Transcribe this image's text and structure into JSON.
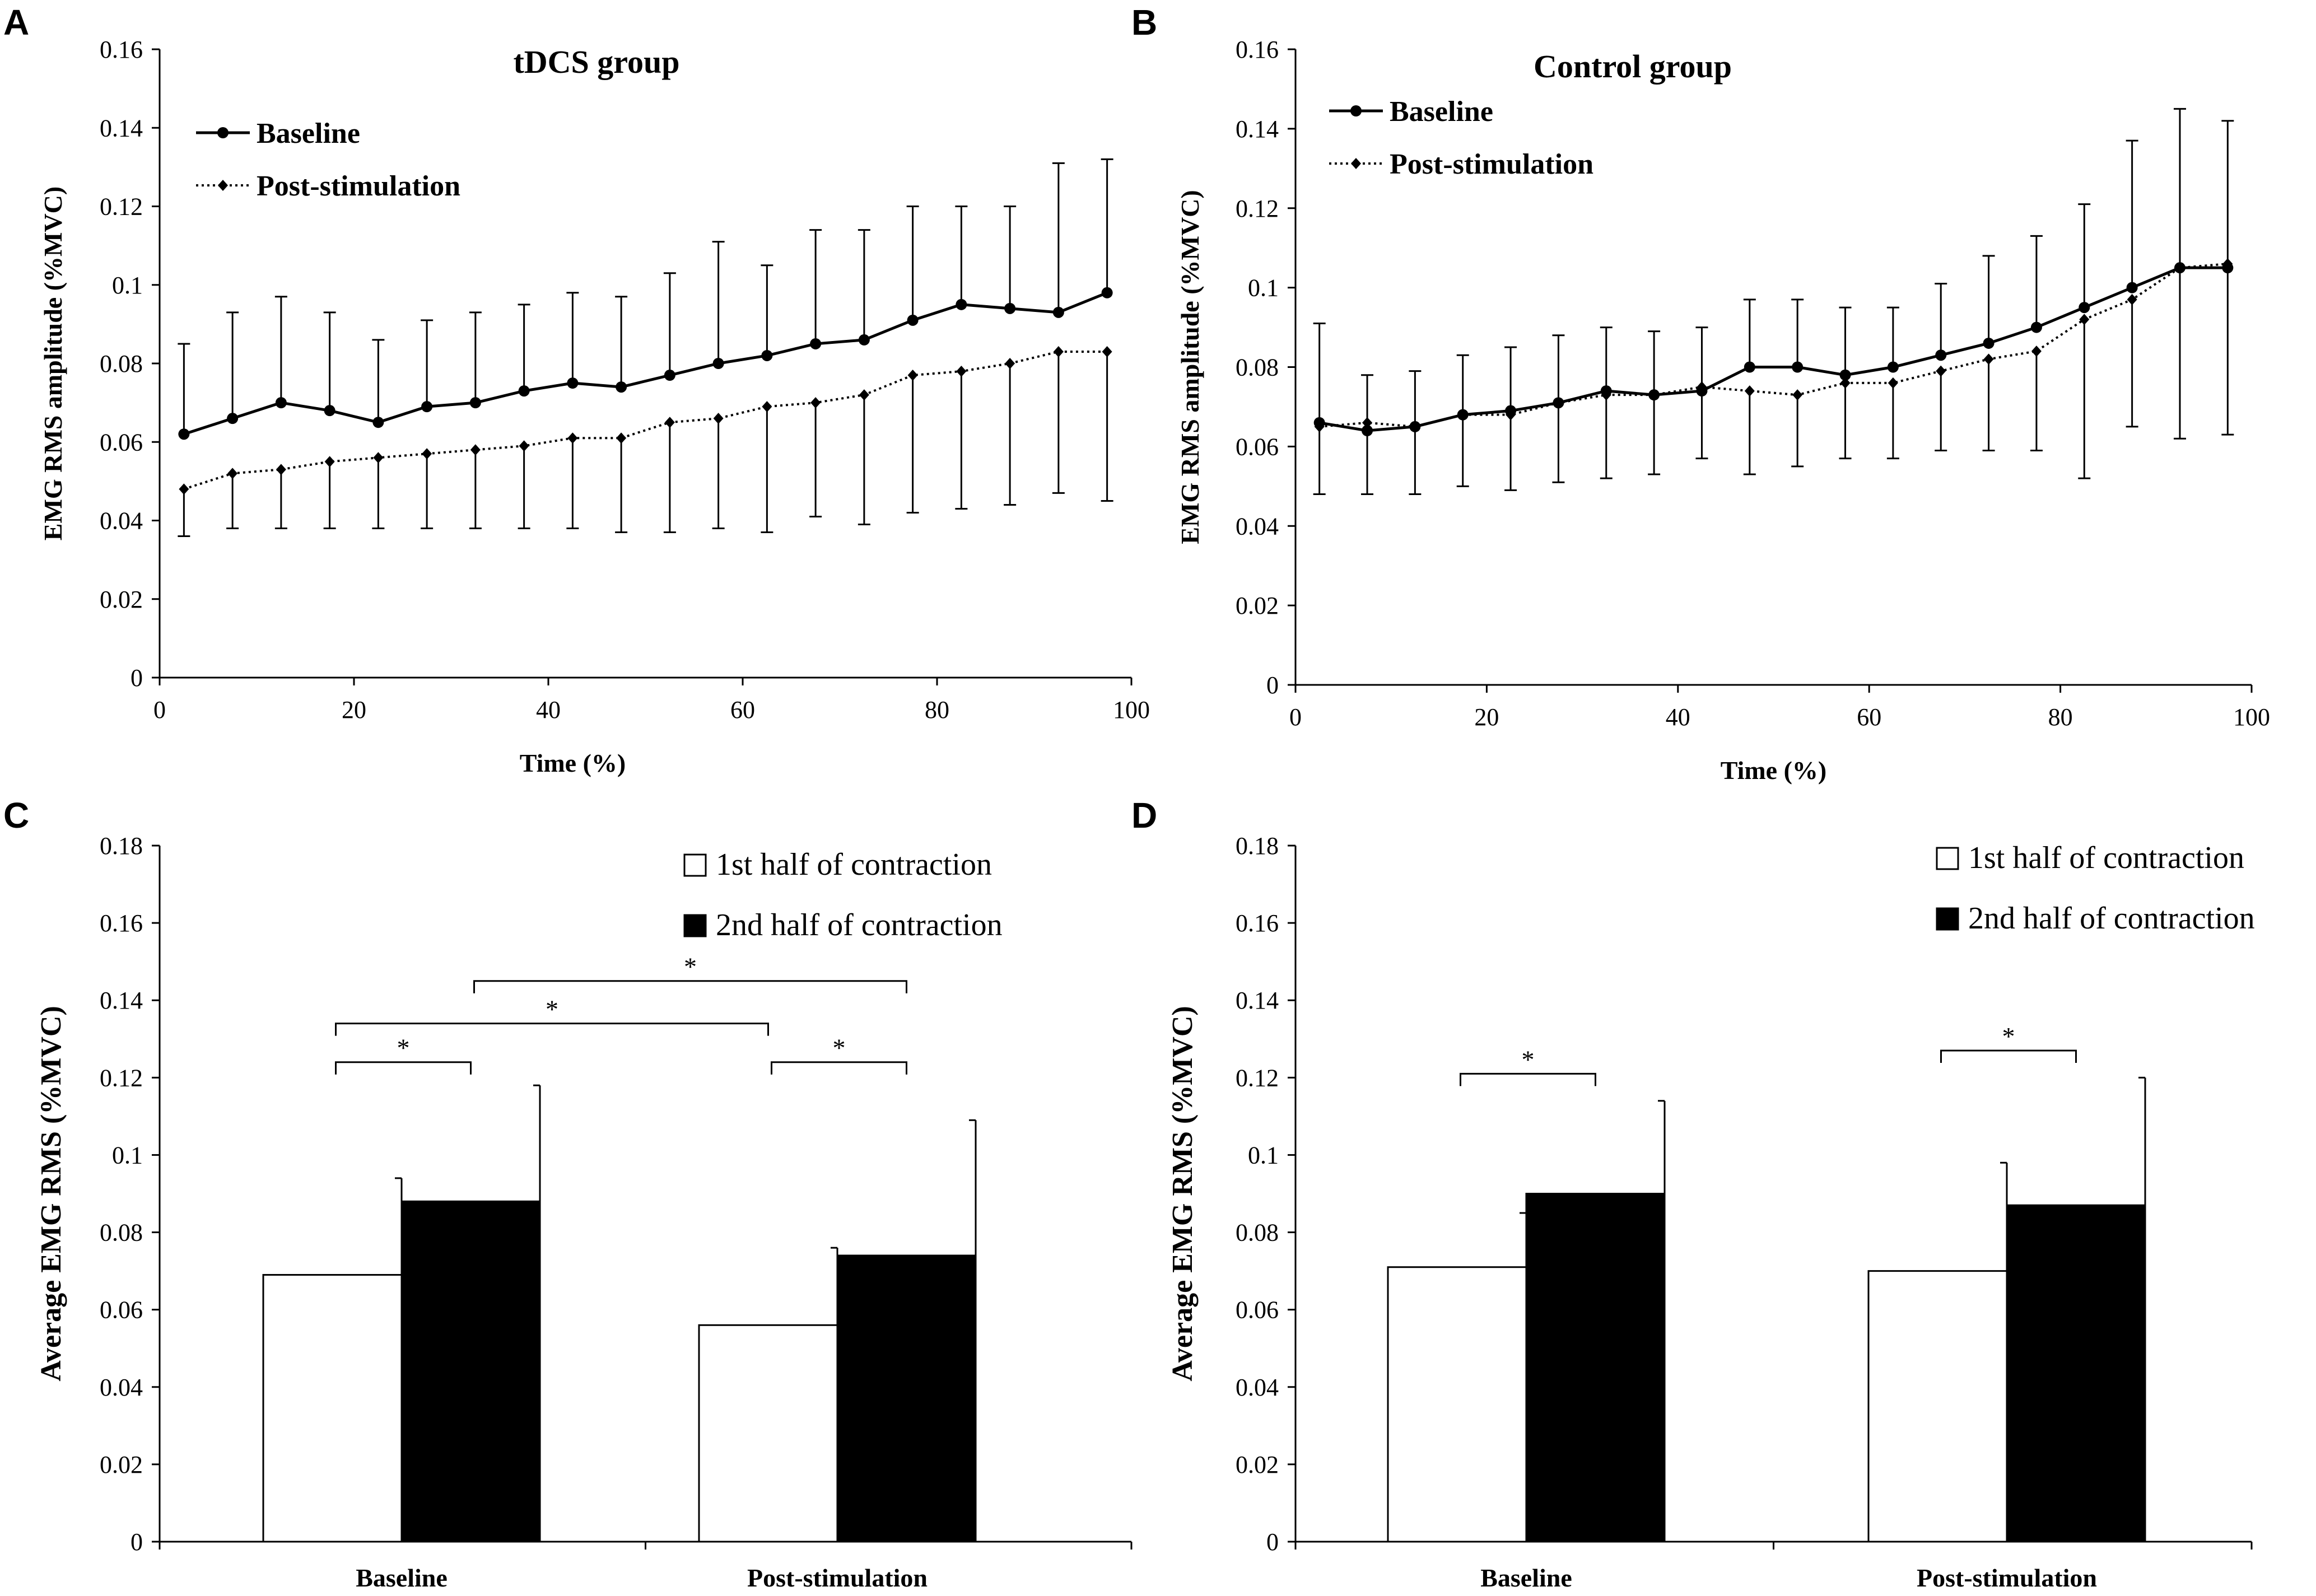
{
  "chart_data": [
    {
      "panel": "A",
      "type": "line",
      "title": "tDCS group",
      "xlabel": "Time (%)",
      "ylabel": "EMG RMS amplitude (%MVC)",
      "xlim": [
        0,
        100
      ],
      "ylim": [
        0,
        0.16
      ],
      "xticks": [
        "0",
        "20",
        "40",
        "60",
        "80",
        "100"
      ],
      "yticks": [
        "0",
        "0.02",
        "0.04",
        "0.06",
        "0.08",
        "0.1",
        "0.12",
        "0.14",
        "0.16"
      ],
      "x": [
        2.5,
        7.5,
        12.5,
        17.5,
        22.5,
        27.5,
        32.5,
        37.5,
        42.5,
        47.5,
        52.5,
        57.5,
        62.5,
        67.5,
        72.5,
        77.5,
        82.5,
        87.5,
        92.5,
        97.5
      ],
      "series": [
        {
          "name": "Baseline",
          "style": "solid",
          "values": [
            0.062,
            0.066,
            0.07,
            0.068,
            0.065,
            0.069,
            0.07,
            0.073,
            0.075,
            0.074,
            0.077,
            0.08,
            0.082,
            0.085,
            0.086,
            0.091,
            0.095,
            0.094,
            0.093,
            0.098
          ],
          "err_upper": [
            0.085,
            0.093,
            0.097,
            0.093,
            0.086,
            0.091,
            0.093,
            0.095,
            0.098,
            0.097,
            0.103,
            0.111,
            0.105,
            0.114,
            0.114,
            0.12,
            0.12,
            0.12,
            0.131,
            0.132
          ]
        },
        {
          "name": "Post-stimulation",
          "style": "dotted",
          "values": [
            0.048,
            0.052,
            0.053,
            0.055,
            0.056,
            0.057,
            0.058,
            0.059,
            0.061,
            0.061,
            0.065,
            0.066,
            0.069,
            0.07,
            0.072,
            0.077,
            0.078,
            0.08,
            0.083,
            0.083
          ],
          "err_lower": [
            0.036,
            0.038,
            0.038,
            0.038,
            0.038,
            0.038,
            0.038,
            0.038,
            0.038,
            0.037,
            0.037,
            0.038,
            0.037,
            0.041,
            0.039,
            0.042,
            0.043,
            0.044,
            0.047,
            0.045
          ]
        }
      ]
    },
    {
      "panel": "B",
      "type": "line",
      "title": "Control group",
      "xlabel": "Time (%)",
      "ylabel": "EMG RMS amplitude (%MVC)",
      "xlim": [
        0,
        100
      ],
      "ylim": [
        0,
        0.16
      ],
      "xticks": [
        "0",
        "20",
        "40",
        "60",
        "80",
        "100"
      ],
      "yticks": [
        "0",
        "0.02",
        "0.04",
        "0.06",
        "0.08",
        "0.1",
        "0.12",
        "0.14",
        "0.16"
      ],
      "x": [
        2.5,
        7.5,
        12.5,
        17.5,
        22.5,
        27.5,
        32.5,
        37.5,
        42.5,
        47.5,
        52.5,
        57.5,
        62.5,
        67.5,
        72.5,
        77.5,
        82.5,
        87.5,
        92.5,
        97.5
      ],
      "series": [
        {
          "name": "Baseline",
          "style": "solid",
          "values": [
            0.066,
            0.064,
            0.065,
            0.068,
            0.069,
            0.071,
            0.074,
            0.073,
            0.074,
            0.08,
            0.08,
            0.078,
            0.08,
            0.083,
            0.086,
            0.09,
            0.095,
            0.1,
            0.105,
            0.105
          ],
          "err_upper": [
            0.091,
            0.078,
            0.079,
            0.083,
            0.085,
            0.088,
            0.09,
            0.089,
            0.09,
            0.097,
            0.097,
            0.095,
            0.095,
            0.101,
            0.108,
            0.113,
            0.121,
            0.137,
            0.145,
            0.142
          ]
        },
        {
          "name": "Post-stimulation",
          "style": "dotted",
          "values": [
            0.065,
            0.066,
            0.065,
            0.068,
            0.068,
            0.071,
            0.073,
            0.073,
            0.075,
            0.074,
            0.073,
            0.076,
            0.076,
            0.079,
            0.082,
            0.084,
            0.092,
            0.097,
            0.105,
            0.106
          ],
          "err_lower": [
            0.048,
            0.048,
            0.048,
            0.05,
            0.049,
            0.051,
            0.052,
            0.053,
            0.057,
            0.053,
            0.055,
            0.057,
            0.057,
            0.059,
            0.059,
            0.059,
            0.052,
            0.065,
            0.062,
            0.063
          ]
        }
      ]
    },
    {
      "panel": "C",
      "type": "bar",
      "ylabel": "Average EMG RMS (%MVC)",
      "ylim": [
        0,
        0.18
      ],
      "yticks": [
        "0",
        "0.02",
        "0.04",
        "0.06",
        "0.08",
        "0.1",
        "0.12",
        "0.14",
        "0.16",
        "0.18"
      ],
      "categories": [
        "Baseline",
        "Post-stimulation"
      ],
      "series": [
        {
          "name": "1st half of contraction",
          "fill": "#ffffff",
          "values": [
            0.069,
            0.056
          ],
          "err_upper": [
            0.094,
            0.076
          ]
        },
        {
          "name": "2nd half of contraction",
          "fill": "#000000",
          "values": [
            0.088,
            0.074
          ],
          "err_upper": [
            0.118,
            0.109
          ]
        }
      ],
      "significance": [
        {
          "from": [
            0,
            0
          ],
          "to": [
            0,
            1
          ],
          "level": 0.124,
          "label": "*"
        },
        {
          "from": [
            0,
            0
          ],
          "to": [
            1,
            0
          ],
          "level": 0.134,
          "label": "*"
        },
        {
          "from": [
            0,
            1
          ],
          "to": [
            1,
            1
          ],
          "level": 0.145,
          "label": "*"
        },
        {
          "from": [
            1,
            0
          ],
          "to": [
            1,
            1
          ],
          "level": 0.124,
          "label": "*"
        }
      ]
    },
    {
      "panel": "D",
      "type": "bar",
      "ylabel": "Average EMG RMS (%MVC)",
      "ylim": [
        0,
        0.18
      ],
      "yticks": [
        "0",
        "0.02",
        "0.04",
        "0.06",
        "0.08",
        "0.1",
        "0.12",
        "0.14",
        "0.16",
        "0.18"
      ],
      "categories": [
        "Baseline",
        "Post-stimulation"
      ],
      "series": [
        {
          "name": "1st half of contraction",
          "fill": "#ffffff",
          "values": [
            0.071,
            0.07
          ],
          "err_upper": [
            0.085,
            0.098
          ]
        },
        {
          "name": "2nd half of contraction",
          "fill": "#000000",
          "values": [
            0.09,
            0.087
          ],
          "err_upper": [
            0.114,
            0.12
          ]
        }
      ],
      "significance": [
        {
          "from": [
            0,
            0
          ],
          "to": [
            0,
            1
          ],
          "level": 0.121,
          "label": "*"
        },
        {
          "from": [
            1,
            0
          ],
          "to": [
            1,
            1
          ],
          "level": 0.127,
          "label": "*"
        }
      ]
    }
  ]
}
